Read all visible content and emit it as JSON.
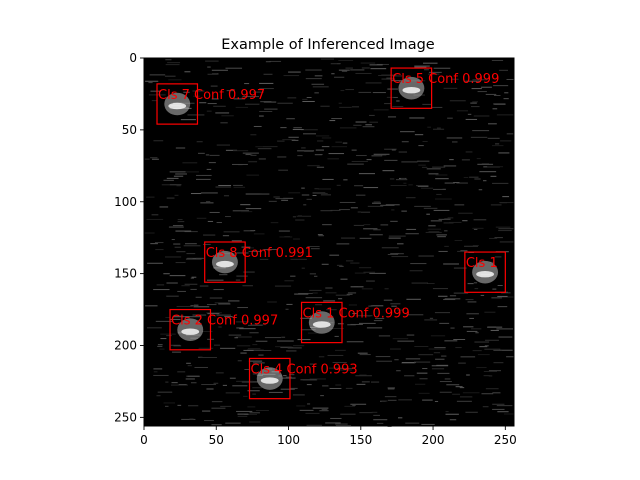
{
  "chart_data": {
    "type": "image",
    "title": "Example of Inferenced Image",
    "xlabel": "",
    "ylabel": "",
    "xlim": [
      0,
      256
    ],
    "ylim": [
      256,
      0
    ],
    "xticks": [
      0,
      50,
      100,
      150,
      200,
      250
    ],
    "yticks": [
      0,
      50,
      100,
      150,
      200,
      250
    ],
    "box_color": "#ff0000",
    "background_color": "#000000",
    "detections": [
      {
        "label": "Cls 7 Conf 0.997",
        "x1": 9,
        "y1": 18,
        "x2": 37,
        "y2": 46
      },
      {
        "label": "Cls 5 Conf 0.999",
        "x1": 171,
        "y1": 7,
        "x2": 199,
        "y2": 35
      },
      {
        "label": "Cls 8 Conf 0.991",
        "x1": 42,
        "y1": 128,
        "x2": 70,
        "y2": 156
      },
      {
        "label": "Cls 1",
        "x1": 222,
        "y1": 135,
        "x2": 250,
        "y2": 163
      },
      {
        "label": "Cls 1 Conf 0.999",
        "x1": 109,
        "y1": 170,
        "x2": 137,
        "y2": 198
      },
      {
        "label": "Cls 2 Conf 0.997",
        "x1": 18,
        "y1": 175,
        "x2": 46,
        "y2": 203
      },
      {
        "label": "Cls 4 Conf 0.993",
        "x1": 73,
        "y1": 209,
        "x2": 101,
        "y2": 237
      }
    ]
  }
}
